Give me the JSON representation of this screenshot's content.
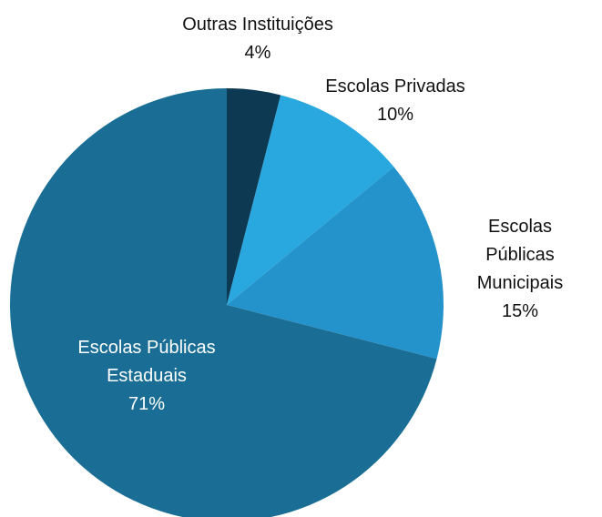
{
  "chart_data": {
    "type": "pie",
    "categories": [
      "Outras Instituições",
      "Escolas Privadas",
      "Escolas Públicas\nMunicipais",
      "Escolas Públicas\nEstaduais"
    ],
    "values": [
      4,
      10,
      15,
      71
    ],
    "value_labels": [
      "4%",
      "10%",
      "15%",
      "71%"
    ],
    "colors": [
      "#0d3a52",
      "#29a8e0",
      "#2593cb",
      "#1a6e96"
    ]
  }
}
